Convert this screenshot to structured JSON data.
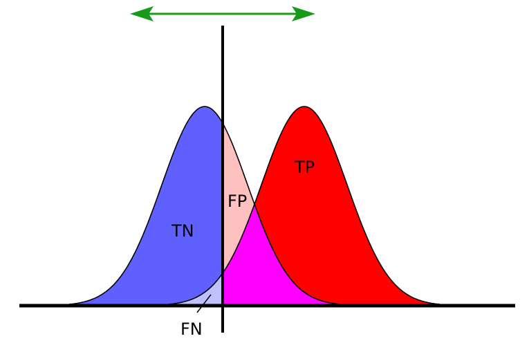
{
  "labels": {
    "tn": "TN",
    "fp": "FP",
    "tp": "TP",
    "fn": "FN"
  },
  "colors": {
    "true_negative": "#6060ff",
    "false_positive": "#ffc0c0",
    "true_positive": "#ff0000",
    "overlap": "#ff00ff",
    "false_negative": "#c0c0ff",
    "arrow": "#1a9a1a",
    "outline": "#000000"
  }
}
